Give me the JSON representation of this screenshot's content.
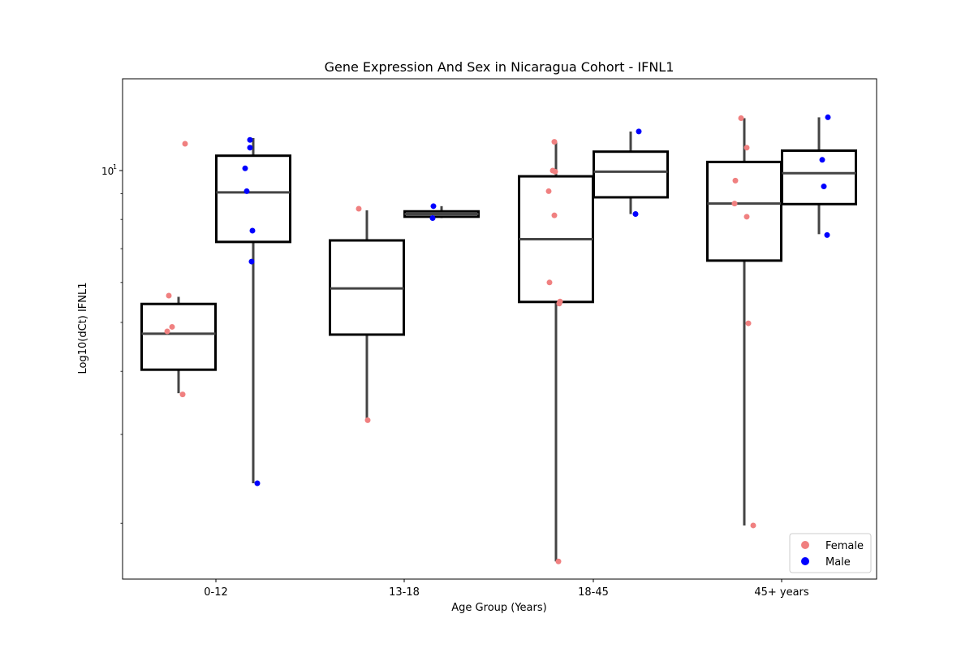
{
  "chart_data": {
    "type": "box",
    "title": "Gene Expression And Sex in Nicaragua Cohort - IFNL1",
    "xlabel": "Age Group (Years)",
    "ylabel": "Log10(dCt) IFNL1",
    "y_scale": "log",
    "ylim": [
      1.55,
      15.2
    ],
    "y_tick_labels": [
      {
        "value": 10,
        "base": "10",
        "exp": "1"
      }
    ],
    "categories": [
      "0-12",
      "13-18",
      "18-45",
      "45+ years"
    ],
    "legend": {
      "position": "bottom-right"
    },
    "series": [
      {
        "name": "Female",
        "color": "#f08080",
        "boxes": [
          {
            "category": "0-12",
            "whislo": 3.62,
            "q1": 4.03,
            "median": 4.75,
            "q3": 5.44,
            "whishi": 5.62
          },
          {
            "category": "13-18",
            "whislo": 3.17,
            "q1": 4.73,
            "median": 5.84,
            "q3": 7.27,
            "whishi": 8.34
          },
          {
            "category": "18-45",
            "whislo": 1.68,
            "q1": 5.49,
            "median": 7.31,
            "q3": 9.74,
            "whishi": 11.4
          },
          {
            "category": "45+ years",
            "whislo": 1.98,
            "q1": 6.63,
            "median": 8.6,
            "q3": 10.4,
            "whishi": 12.7
          }
        ],
        "points": [
          {
            "category": "0-12",
            "values": [
              11.3,
              5.65,
              4.9,
              4.8,
              3.6
            ]
          },
          {
            "category": "13-18",
            "values": [
              8.4,
              3.2
            ]
          },
          {
            "category": "18-45",
            "values": [
              11.4,
              10.0,
              9.95,
              9.1,
              8.15,
              6.0,
              5.5,
              5.45,
              1.68
            ]
          },
          {
            "category": "45+ years",
            "values": [
              12.7,
              11.1,
              9.55,
              8.6,
              8.1,
              4.98,
              1.98
            ]
          }
        ]
      },
      {
        "name": "Male",
        "color": "#0000ff",
        "boxes": [
          {
            "category": "0-12",
            "whislo": 2.4,
            "q1": 7.22,
            "median": 9.05,
            "q3": 10.7,
            "whishi": 11.6
          },
          {
            "category": "13-18",
            "whislo": 8.05,
            "q1": 8.1,
            "median": 8.2,
            "q3": 8.3,
            "whishi": 8.5
          },
          {
            "category": "18-45",
            "whislo": 8.2,
            "q1": 8.85,
            "median": 9.95,
            "q3": 10.9,
            "whishi": 11.95
          },
          {
            "category": "45+ years",
            "whislo": 7.48,
            "q1": 8.58,
            "median": 9.88,
            "q3": 10.95,
            "whishi": 12.75
          }
        ],
        "points": [
          {
            "category": "0-12",
            "values": [
              11.5,
              11.1,
              10.1,
              9.1,
              7.6,
              6.6,
              2.4
            ]
          },
          {
            "category": "13-18",
            "values": [
              8.5,
              8.05
            ]
          },
          {
            "category": "18-45",
            "values": [
              11.95,
              8.2
            ]
          },
          {
            "category": "45+ years",
            "values": [
              12.75,
              10.5,
              9.3,
              7.45
            ]
          }
        ]
      }
    ]
  }
}
